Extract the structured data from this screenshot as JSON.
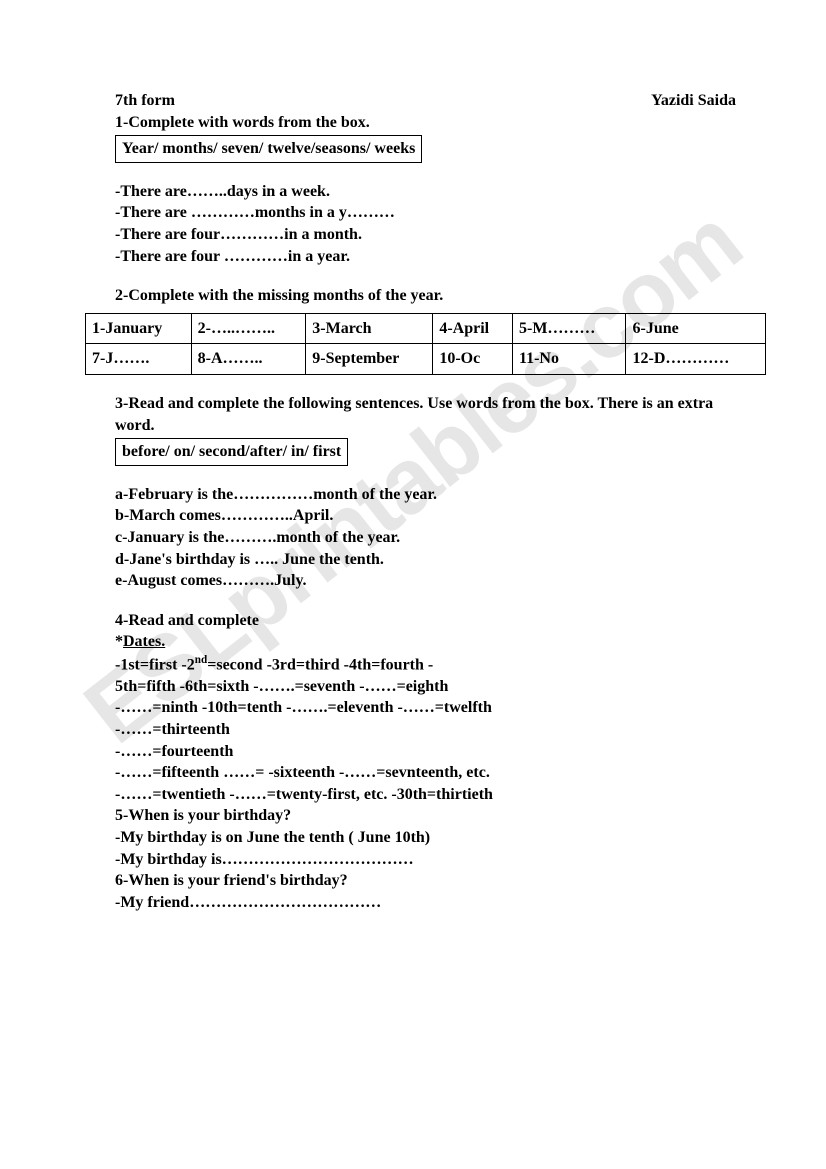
{
  "watermark": "ESLprintables.com",
  "header": {
    "left": "7th form",
    "right": "Yazidi Saida"
  },
  "q1": {
    "prompt": "1-Complete with words from the box.",
    "box": "Year/ months/ seven/ twelve/seasons/ weeks",
    "lines": [
      "-There are……..days in a week.",
      "-There are …………months in a y………",
      "-There are four…………in a month.",
      "-There are four …………in a year."
    ]
  },
  "q2": {
    "prompt": "2-Complete with the missing months of the year.",
    "cells": {
      "r1c1": "1-January",
      "r1c2": "2-…..……..",
      "r1c3": "3-March",
      "r1c4": "4-April",
      "r1c5": "5-M………",
      "r1c6": "6-June",
      "r2c1": "7-J…….",
      "r2c2": "8-A……..",
      "r2c3": "9-September",
      "r2c4": "10-Oc",
      "r2c5": "11-No",
      "r2c6": "12-D…………"
    }
  },
  "q3": {
    "prompt": "3-Read and complete the following sentences. Use words from the box. There is an extra word.",
    "box": "before/ on/ second/after/ in/ first",
    "lines": [
      "a-February is the……………month of the year.",
      "b-March comes…………..April.",
      "c-January is the……….month of the year.",
      "d-Jane's birthday is ….. June the tenth.",
      "e-August comes……….July."
    ]
  },
  "q4": {
    "prompt": "4-Read and complete",
    "subhead": "*Dates.",
    "line1_a": "-1st=first      -2",
    "line1_sup": "nd",
    "line1_b": "=second       -3rd=third       -4th=fourth      -",
    "lines_rest": [
      "5th=fifth          -6th=sixth       -…….=seventh          -……=eighth",
      "-……=ninth          -10th=tenth       -…….=eleventh     -……=twelfth",
      "-……=thirteenth",
      "-……=fourteenth",
      "-……=fifteenth       ……= -sixteenth        -……=sevnteenth, etc.",
      "-……=twentieth     -……=twenty-first, etc.    -30th=thirtieth"
    ]
  },
  "q5": {
    "prompt": "5-When is your birthday?",
    "lines": [
      "-My birthday is on June the tenth ( June 10th)",
      "-My birthday is………………………………"
    ]
  },
  "q6": {
    "prompt": "6-When is your friend's birthday?",
    "lines": [
      "-My friend………………………………"
    ]
  }
}
